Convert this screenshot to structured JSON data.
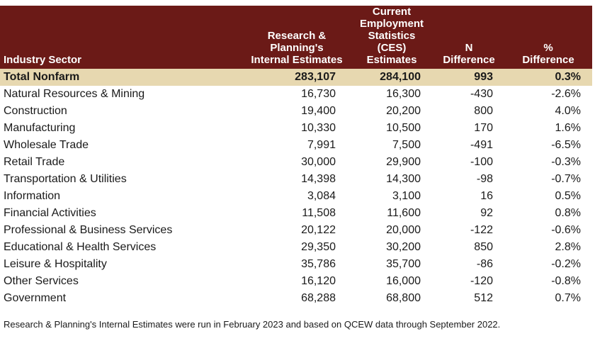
{
  "table": {
    "headers": [
      [
        "Industry Sector"
      ],
      [
        "Research &",
        "Planning's",
        "Internal Estimates"
      ],
      [
        "Current",
        "Employment",
        "Statistics (CES)",
        "Estimates"
      ],
      [
        "N",
        "Difference"
      ],
      [
        "%",
        "Difference"
      ]
    ],
    "total_row": [
      "Total Nonfarm",
      "283,107",
      "284,100",
      "993",
      "0.3%"
    ],
    "rows": [
      [
        "Natural Resources & Mining",
        "16,730",
        "16,300",
        "-430",
        "-2.6%"
      ],
      [
        "Construction",
        "19,400",
        "20,200",
        "800",
        "4.0%"
      ],
      [
        "Manufacturing",
        "10,330",
        "10,500",
        "170",
        "1.6%"
      ],
      [
        "Wholesale Trade",
        "7,991",
        "7,500",
        "-491",
        "-6.5%"
      ],
      [
        "Retail Trade",
        "30,000",
        "29,900",
        "-100",
        "-0.3%"
      ],
      [
        "Transportation & Utilities",
        "14,398",
        "14,300",
        "-98",
        "-0.7%"
      ],
      [
        "Information",
        "3,084",
        "3,100",
        "16",
        "0.5%"
      ],
      [
        "Financial Activities",
        "11,508",
        "11,600",
        "92",
        "0.8%"
      ],
      [
        "Professional & Business Services",
        "20,122",
        "20,000",
        "-122",
        "-0.6%"
      ],
      [
        "Educational & Health Services",
        "29,350",
        "30,200",
        "850",
        "2.8%"
      ],
      [
        "Leisure & Hospitality",
        "35,786",
        "35,700",
        "-86",
        "-0.2%"
      ],
      [
        "Other Services",
        "16,120",
        "16,000",
        "-120",
        "-0.8%"
      ],
      [
        "Government",
        "68,288",
        "68,800",
        "512",
        "0.7%"
      ]
    ]
  },
  "footnote": "Research & Planning's Internal Estimates were run in February 2023 and based on QCEW data through September 2022.",
  "colors": {
    "header_bg": "#6b1a17",
    "header_text": "#ffffff",
    "total_row_bg": "#e7d8b0"
  }
}
